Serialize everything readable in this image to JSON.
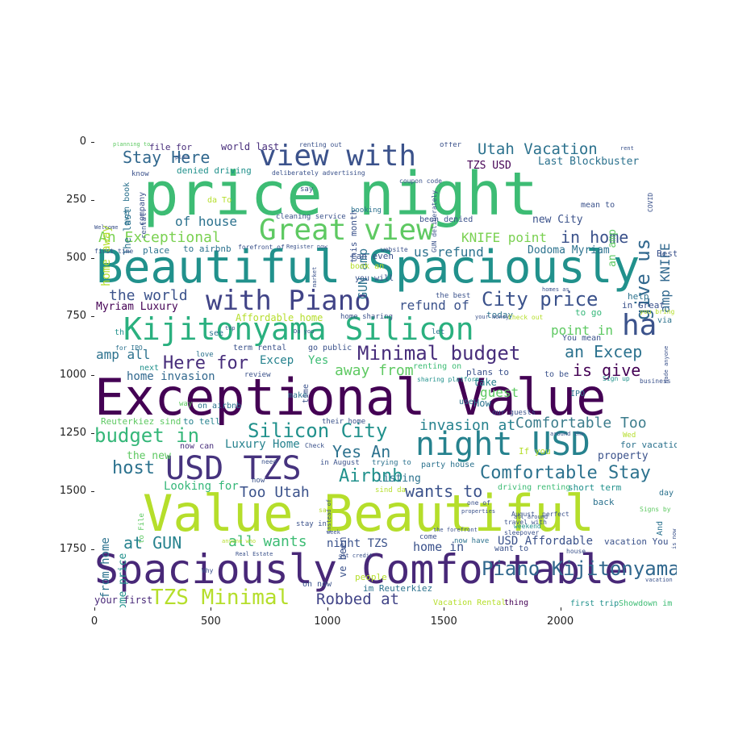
{
  "axes": {
    "yticks": [
      "0",
      "250",
      "500",
      "750",
      "1000",
      "1250",
      "1500",
      "1750"
    ],
    "xticks": [
      "0",
      "500",
      "1000",
      "1500",
      "2000"
    ]
  },
  "colors": {
    "palette": [
      "#440154",
      "#3b528b",
      "#21918c",
      "#5ec962",
      "#b5de2b",
      "#fde725",
      "#31688e",
      "#35b779"
    ]
  },
  "words": [
    {
      "text": "price night",
      "color": "#3dbc74"
    },
    {
      "text": "Beautiful Spaciously",
      "color": "#21918c"
    },
    {
      "text": "Exceptional Value",
      "color": "#440154"
    },
    {
      "text": "Value Beautiful",
      "color": "#b5de2b"
    },
    {
      "text": "Spaciously Comfortable",
      "color": "#482878"
    },
    {
      "text": "view with",
      "color": "#3b528b"
    },
    {
      "text": "Great view",
      "color": "#5ec962"
    },
    {
      "text": "Kijitonyama Silicon",
      "color": "#2ab07f"
    },
    {
      "text": "with Piano",
      "color": "#414487"
    },
    {
      "text": "USD TZS",
      "color": "#46337e"
    },
    {
      "text": "night USD",
      "color": "#26828e"
    },
    {
      "text": "ha",
      "color": "#3b528b"
    },
    {
      "text": "Minimal budget",
      "color": "#472d7b"
    },
    {
      "text": "City price",
      "color": "#3b528b"
    },
    {
      "text": "Stay Here",
      "color": "#31688e"
    },
    {
      "text": "Utah Vacation",
      "color": "#2c728e"
    },
    {
      "text": "in home",
      "color": "#3b528b"
    },
    {
      "text": "Comfortable Stay",
      "color": "#2c728e"
    },
    {
      "text": "Comfortable Too",
      "color": "#3b7c8c"
    },
    {
      "text": "Piano Kijitonyama",
      "color": "#31688e"
    },
    {
      "text": "TZS Minimal",
      "color": "#b5de2b"
    },
    {
      "text": "Robbed at",
      "color": "#414487"
    },
    {
      "text": "Silicon City",
      "color": "#21918c"
    },
    {
      "text": "budget in",
      "color": "#35b779"
    },
    {
      "text": "Yes An",
      "color": "#2c728e"
    },
    {
      "text": "Airbnb",
      "color": "#21918c"
    },
    {
      "text": "host",
      "color": "#2c728e"
    },
    {
      "text": "wants to",
      "color": "#3b528b"
    },
    {
      "text": "Too Utah",
      "color": "#3b528b"
    },
    {
      "text": "at GUN",
      "color": "#26828e"
    },
    {
      "text": "all wants",
      "color": "#3dbc74"
    },
    {
      "text": "Here for",
      "color": "#472d7b"
    },
    {
      "text": "an Excep",
      "color": "#2c728e"
    },
    {
      "text": "away from",
      "color": "#5ec962"
    },
    {
      "text": "is give",
      "color": "#440154"
    },
    {
      "text": "invasion at",
      "color": "#26828e"
    },
    {
      "text": "An Exceptional",
      "color": "#7ad151"
    },
    {
      "text": "of house",
      "color": "#2c728e"
    },
    {
      "text": "the world",
      "color": "#3b528b"
    },
    {
      "text": "refund of",
      "color": "#3b528b"
    },
    {
      "text": "us refund",
      "color": "#2c728e"
    },
    {
      "text": "KNIFE point",
      "color": "#7ad151"
    },
    {
      "text": "Dodoma Myriam",
      "color": "#2c728e"
    },
    {
      "text": "point in",
      "color": "#5ec962"
    },
    {
      "text": "amp all",
      "color": "#2c728e"
    },
    {
      "text": "Excep",
      "color": "#26828e"
    },
    {
      "text": "Yes",
      "color": "#3dbc74"
    },
    {
      "text": "home invasion",
      "color": "#31688e"
    },
    {
      "text": "guest",
      "color": "#5ec962"
    },
    {
      "text": "Luxury Home",
      "color": "#26828e"
    },
    {
      "text": "Looking for",
      "color": "#35b779"
    },
    {
      "text": "Myriam Luxury",
      "color": "#440154"
    },
    {
      "text": "Affordable home",
      "color": "#b5de2b"
    },
    {
      "text": "USD Affordable",
      "color": "#3b528b"
    },
    {
      "text": "night TZS",
      "color": "#3b528b"
    },
    {
      "text": "home in",
      "color": "#3b528b"
    },
    {
      "text": "Last Blockbuster",
      "color": "#2c728e"
    },
    {
      "text": "TZS USD",
      "color": "#440154"
    },
    {
      "text": "new City",
      "color": "#3b528b"
    },
    {
      "text": "world last",
      "color": "#472d7b"
    },
    {
      "text": "denied driving",
      "color": "#21918c"
    },
    {
      "text": "file for",
      "color": "#472d7b"
    },
    {
      "text": "this month",
      "color": "#3b528b"
    },
    {
      "text": "give us",
      "color": "#31688e"
    },
    {
      "text": "amp KNIFE",
      "color": "#31688e"
    },
    {
      "text": "home away",
      "color": "#b5de2b"
    },
    {
      "text": "GUN amp",
      "color": "#2c728e"
    },
    {
      "text": "from home",
      "color": "#2c728e"
    },
    {
      "text": "Home price",
      "color": "#21918c"
    },
    {
      "text": "listing",
      "color": "#2c728e"
    },
    {
      "text": "booking",
      "color": "#2c728e"
    },
    {
      "text": "been denied",
      "color": "#3b528b"
    },
    {
      "text": "Reuterkiez sind",
      "color": "#5ec962"
    },
    {
      "text": "to tell",
      "color": "#26828e"
    },
    {
      "text": "the new",
      "color": "#5ec962"
    },
    {
      "text": "now can",
      "color": "#472d7b"
    },
    {
      "text": "property",
      "color": "#3b528b"
    },
    {
      "text": "for vacation",
      "color": "#2c728e"
    },
    {
      "text": "If you",
      "color": "#b5de2b"
    },
    {
      "text": "Vacation Rental",
      "color": "#b5de2b"
    },
    {
      "text": "your first",
      "color": "#482878"
    },
    {
      "text": "people",
      "color": "#b5de2b"
    },
    {
      "text": "on now",
      "color": "#3b528b"
    },
    {
      "text": "im Reuterkiez",
      "color": "#2c728e"
    },
    {
      "text": "Showdown im",
      "color": "#3dbc74"
    },
    {
      "text": "first trip",
      "color": "#21918c"
    },
    {
      "text": "thing",
      "color": "#440154"
    },
    {
      "text": "driving renting",
      "color": "#3dbc74"
    },
    {
      "text": "short term",
      "color": "#21918c"
    },
    {
      "text": "back",
      "color": "#2c728e"
    },
    {
      "text": "day",
      "color": "#2c728e"
    },
    {
      "text": "And",
      "color": "#2c728e"
    },
    {
      "text": "vacation You",
      "color": "#3b528b"
    },
    {
      "text": "plans to",
      "color": "#3b528b"
    },
    {
      "text": "today",
      "color": "#2c728e"
    },
    {
      "text": "to go",
      "color": "#35b779"
    },
    {
      "text": "in Great",
      "color": "#3b528b"
    },
    {
      "text": "help",
      "color": "#2c728e"
    },
    {
      "text": "Best",
      "color": "#3b528b"
    },
    {
      "text": "via",
      "color": "#2c728e"
    },
    {
      "text": "you will",
      "color": "#3b528b"
    },
    {
      "text": "book an",
      "color": "#b5de2b"
    },
    {
      "text": "can even",
      "color": "#3b528b"
    },
    {
      "text": "place",
      "color": "#2c728e"
    },
    {
      "text": "to airbnb",
      "color": "#2c728e"
    },
    {
      "text": "on airbnb",
      "color": "#2c728e"
    },
    {
      "text": "take",
      "color": "#26828e"
    },
    {
      "text": "use",
      "color": "#2c728e"
    },
    {
      "text": "How",
      "color": "#2c728e"
    },
    {
      "text": "make",
      "color": "#2c728e"
    },
    {
      "text": "way",
      "color": "#5ec962"
    },
    {
      "text": "IPO",
      "color": "#2c728e"
    },
    {
      "text": "an amp",
      "color": "#5ec962"
    },
    {
      "text": "mean to",
      "color": "#3b528b"
    },
    {
      "text": "cleaning service",
      "color": "#3b528b"
    },
    {
      "text": "stay in",
      "color": "#3b528b"
    },
    {
      "text": "ve been",
      "color": "#3b528b"
    },
    {
      "text": "term rental",
      "color": "#3b528b"
    },
    {
      "text": "go public",
      "color": "#3b528b"
    },
    {
      "text": "renting on",
      "color": "#3dbc74"
    },
    {
      "text": "come",
      "color": "#3b528b"
    },
    {
      "text": "now have",
      "color": "#2c728e"
    },
    {
      "text": "want to",
      "color": "#3b528b"
    },
    {
      "text": "in August",
      "color": "#3b528b"
    },
    {
      "text": "trying to",
      "color": "#2c728e"
    },
    {
      "text": "party house",
      "color": "#2c728e"
    },
    {
      "text": "their home",
      "color": "#3b528b"
    },
    {
      "text": "our guests",
      "color": "#3b528b"
    },
    {
      "text": "the best",
      "color": "#3b528b"
    },
    {
      "text": "home sharing",
      "color": "#3b528b"
    },
    {
      "text": "Check out",
      "color": "#b5de2b"
    },
    {
      "text": "You mean",
      "color": "#3b528b"
    },
    {
      "text": "to be",
      "color": "#3b528b"
    },
    {
      "text": "Sign up",
      "color": "#21918c"
    },
    {
      "text": "business",
      "color": "#3b528b"
    },
    {
      "text": "sharing platform",
      "color": "#21918c"
    },
    {
      "text": "review",
      "color": "#3b528b"
    },
    {
      "text": "time",
      "color": "#3b528b"
    },
    {
      "text": "love",
      "color": "#2c728e"
    },
    {
      "text": "next",
      "color": "#21918c"
    },
    {
      "text": "for IPO",
      "color": "#2c728e"
    },
    {
      "text": "see",
      "color": "#2c728e"
    },
    {
      "text": "let",
      "color": "#2c728e"
    },
    {
      "text": "th",
      "color": "#21918c"
    },
    {
      "text": "travel with",
      "color": "#3b528b"
    },
    {
      "text": "sleepover",
      "color": "#3b528b"
    },
    {
      "text": "weekend",
      "color": "#21918c"
    },
    {
      "text": "perfect",
      "color": "#3b528b"
    },
    {
      "text": "August",
      "color": "#3b528b"
    },
    {
      "text": "one of",
      "color": "#3b528b"
    },
    {
      "text": "sind da",
      "color": "#b5de2b"
    },
    {
      "text": "safe",
      "color": "#b5de2b"
    },
    {
      "text": "need",
      "color": "#3b528b"
    },
    {
      "text": "now",
      "color": "#3b528b"
    },
    {
      "text": "Check",
      "color": "#3b528b"
    },
    {
      "text": "Why",
      "color": "#3b528b"
    },
    {
      "text": "get credit",
      "color": "#3b528b"
    },
    {
      "text": "week",
      "color": "#3b528b"
    },
    {
      "text": "coupon code",
      "color": "#3b528b"
    },
    {
      "text": "say",
      "color": "#3b528b"
    },
    {
      "text": "know",
      "color": "#3b528b"
    },
    {
      "text": "even book",
      "color": "#2c728e"
    },
    {
      "text": "The last",
      "color": "#2c728e"
    },
    {
      "text": "company",
      "color": "#3b528b"
    },
    {
      "text": "rental",
      "color": "#3b528b"
    },
    {
      "text": "Welcome",
      "color": "#3b528b"
    },
    {
      "text": "first time",
      "color": "#3b528b"
    },
    {
      "text": "website",
      "color": "#3b528b"
    },
    {
      "text": "Register now",
      "color": "#3b528b"
    },
    {
      "text": "forefront of",
      "color": "#3b528b"
    },
    {
      "text": "da To",
      "color": "#b5de2b"
    },
    {
      "text": "offer",
      "color": "#3b528b"
    },
    {
      "text": "renting out",
      "color": "#3b528b"
    },
    {
      "text": "planning to",
      "color": "#5ec962"
    },
    {
      "text": "plan",
      "color": "#3b528b"
    },
    {
      "text": "deliberately advertising",
      "color": "#3b528b"
    },
    {
      "text": "rent",
      "color": "#3b528b"
    },
    {
      "text": "COVID",
      "color": "#3b528b"
    },
    {
      "text": "you bring",
      "color": "#b5de2b"
    },
    {
      "text": "Signs by",
      "color": "#5ec962"
    },
    {
      "text": "is now",
      "color": "#3b528b"
    },
    {
      "text": "made anyone",
      "color": "#3b528b"
    },
    {
      "text": "homes as",
      "color": "#3b528b"
    },
    {
      "text": "your money",
      "color": "#3b528b"
    },
    {
      "text": "vacation",
      "color": "#3b528b"
    },
    {
      "text": "house",
      "color": "#3b528b"
    },
    {
      "text": "Real Estate",
      "color": "#3b528b"
    },
    {
      "text": "anyone who",
      "color": "#b5de2b"
    },
    {
      "text": "properties",
      "color": "#3b528b"
    },
    {
      "text": "instead of",
      "color": "#3b528b"
    },
    {
      "text": "Do you",
      "color": "#3b528b"
    },
    {
      "text": "to File",
      "color": "#5ec962"
    },
    {
      "text": "Wed",
      "color": "#b5de2b"
    },
    {
      "text": "around the",
      "color": "#3b528b"
    },
    {
      "text": "all around",
      "color": "#3b528b"
    },
    {
      "text": "the forefront",
      "color": "#3b528b"
    },
    {
      "text": "market",
      "color": "#3b528b"
    },
    {
      "text": "top",
      "color": "#3b528b"
    },
    {
      "text": "GUN deliberately",
      "color": "#3b528b"
    }
  ]
}
